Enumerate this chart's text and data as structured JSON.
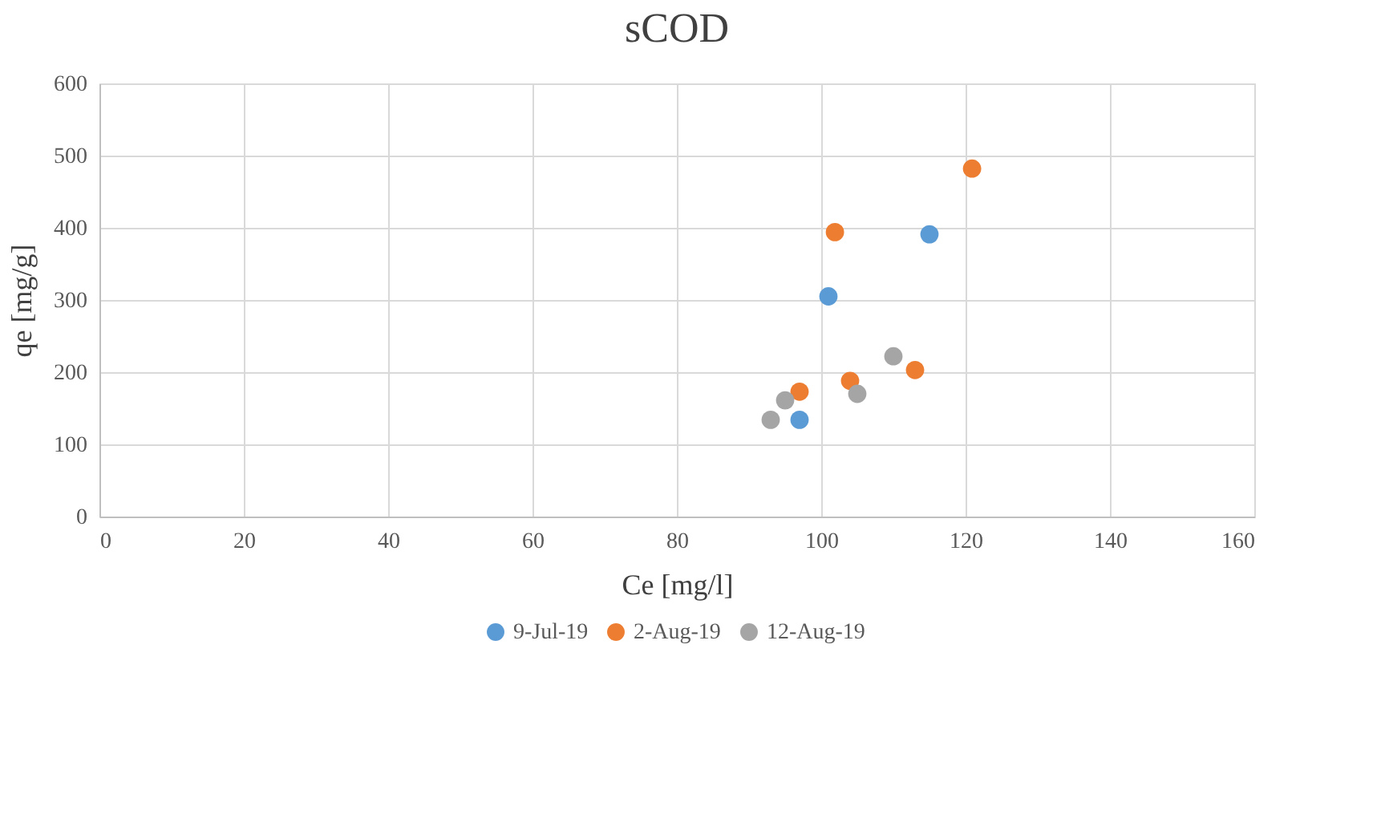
{
  "chart_data": {
    "type": "scatter",
    "title": "sCOD",
    "xlabel": "Ce [mg/l]",
    "ylabel": "qe [mg/g]",
    "xlim": [
      0,
      160
    ],
    "xticks": [
      0,
      20,
      40,
      60,
      80,
      100,
      120,
      140,
      160
    ],
    "ylim": [
      0,
      600
    ],
    "yticks": [
      0,
      100,
      200,
      300,
      400,
      500,
      600
    ],
    "grid": true,
    "legend": "bottom",
    "marker": "circle",
    "series": [
      {
        "name": "9-Jul-19",
        "color": "#5b9bd5",
        "x": [
          101,
          115,
          null,
          97
        ],
        "values": [
          305,
          391,
          null,
          134
        ]
      },
      {
        "name": "2-Aug-19",
        "color": "#ed7d31",
        "x": [
          120.9,
          101.9,
          113,
          104,
          97
        ],
        "values": [
          482,
          394,
          203,
          188,
          173
        ]
      },
      {
        "name": "12-Aug-19",
        "color": "#a5a5a5",
        "x": [
          110,
          105,
          95,
          93
        ],
        "values": [
          222,
          170,
          161,
          134
        ]
      }
    ]
  }
}
